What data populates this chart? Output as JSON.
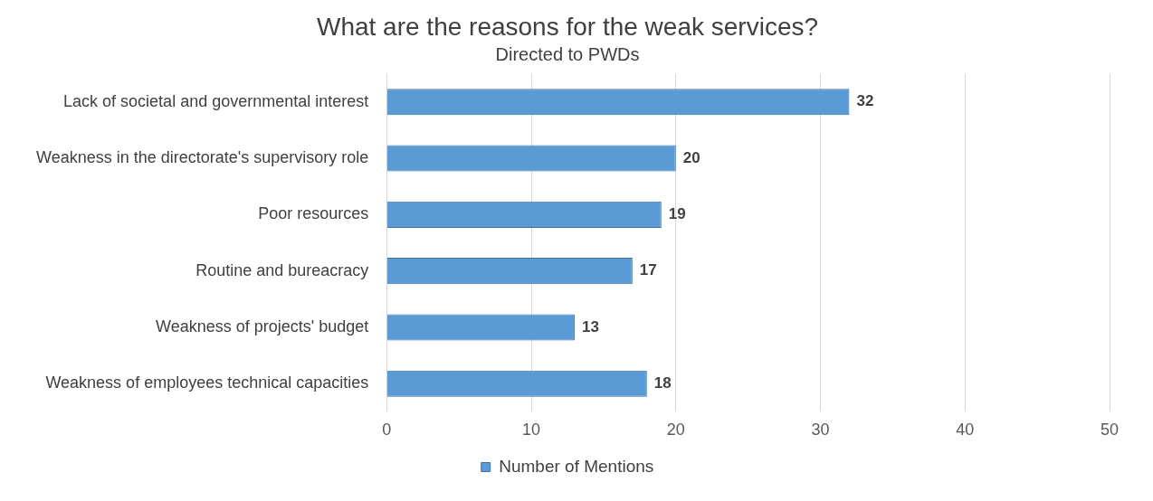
{
  "chart_data": {
    "type": "bar",
    "orientation": "horizontal",
    "title": "What are the reasons for the weak services?",
    "subtitle": "Directed to PWDs",
    "categories": [
      "Lack of societal and governmental interest",
      "Weakness in the directorate's supervisory role",
      "Poor resources",
      "Routine and bureacracy",
      "Weakness of projects' budget",
      "Weakness of employees technical capacities"
    ],
    "series": [
      {
        "name": "Number of Mentions",
        "color": "#5b9bd5",
        "values": [
          32,
          20,
          19,
          17,
          13,
          18
        ]
      }
    ],
    "xlim": [
      0,
      50
    ],
    "xticks": [
      0,
      10,
      20,
      30,
      40,
      50
    ],
    "grid": "x",
    "legend": "bottom",
    "data_labels": true
  }
}
